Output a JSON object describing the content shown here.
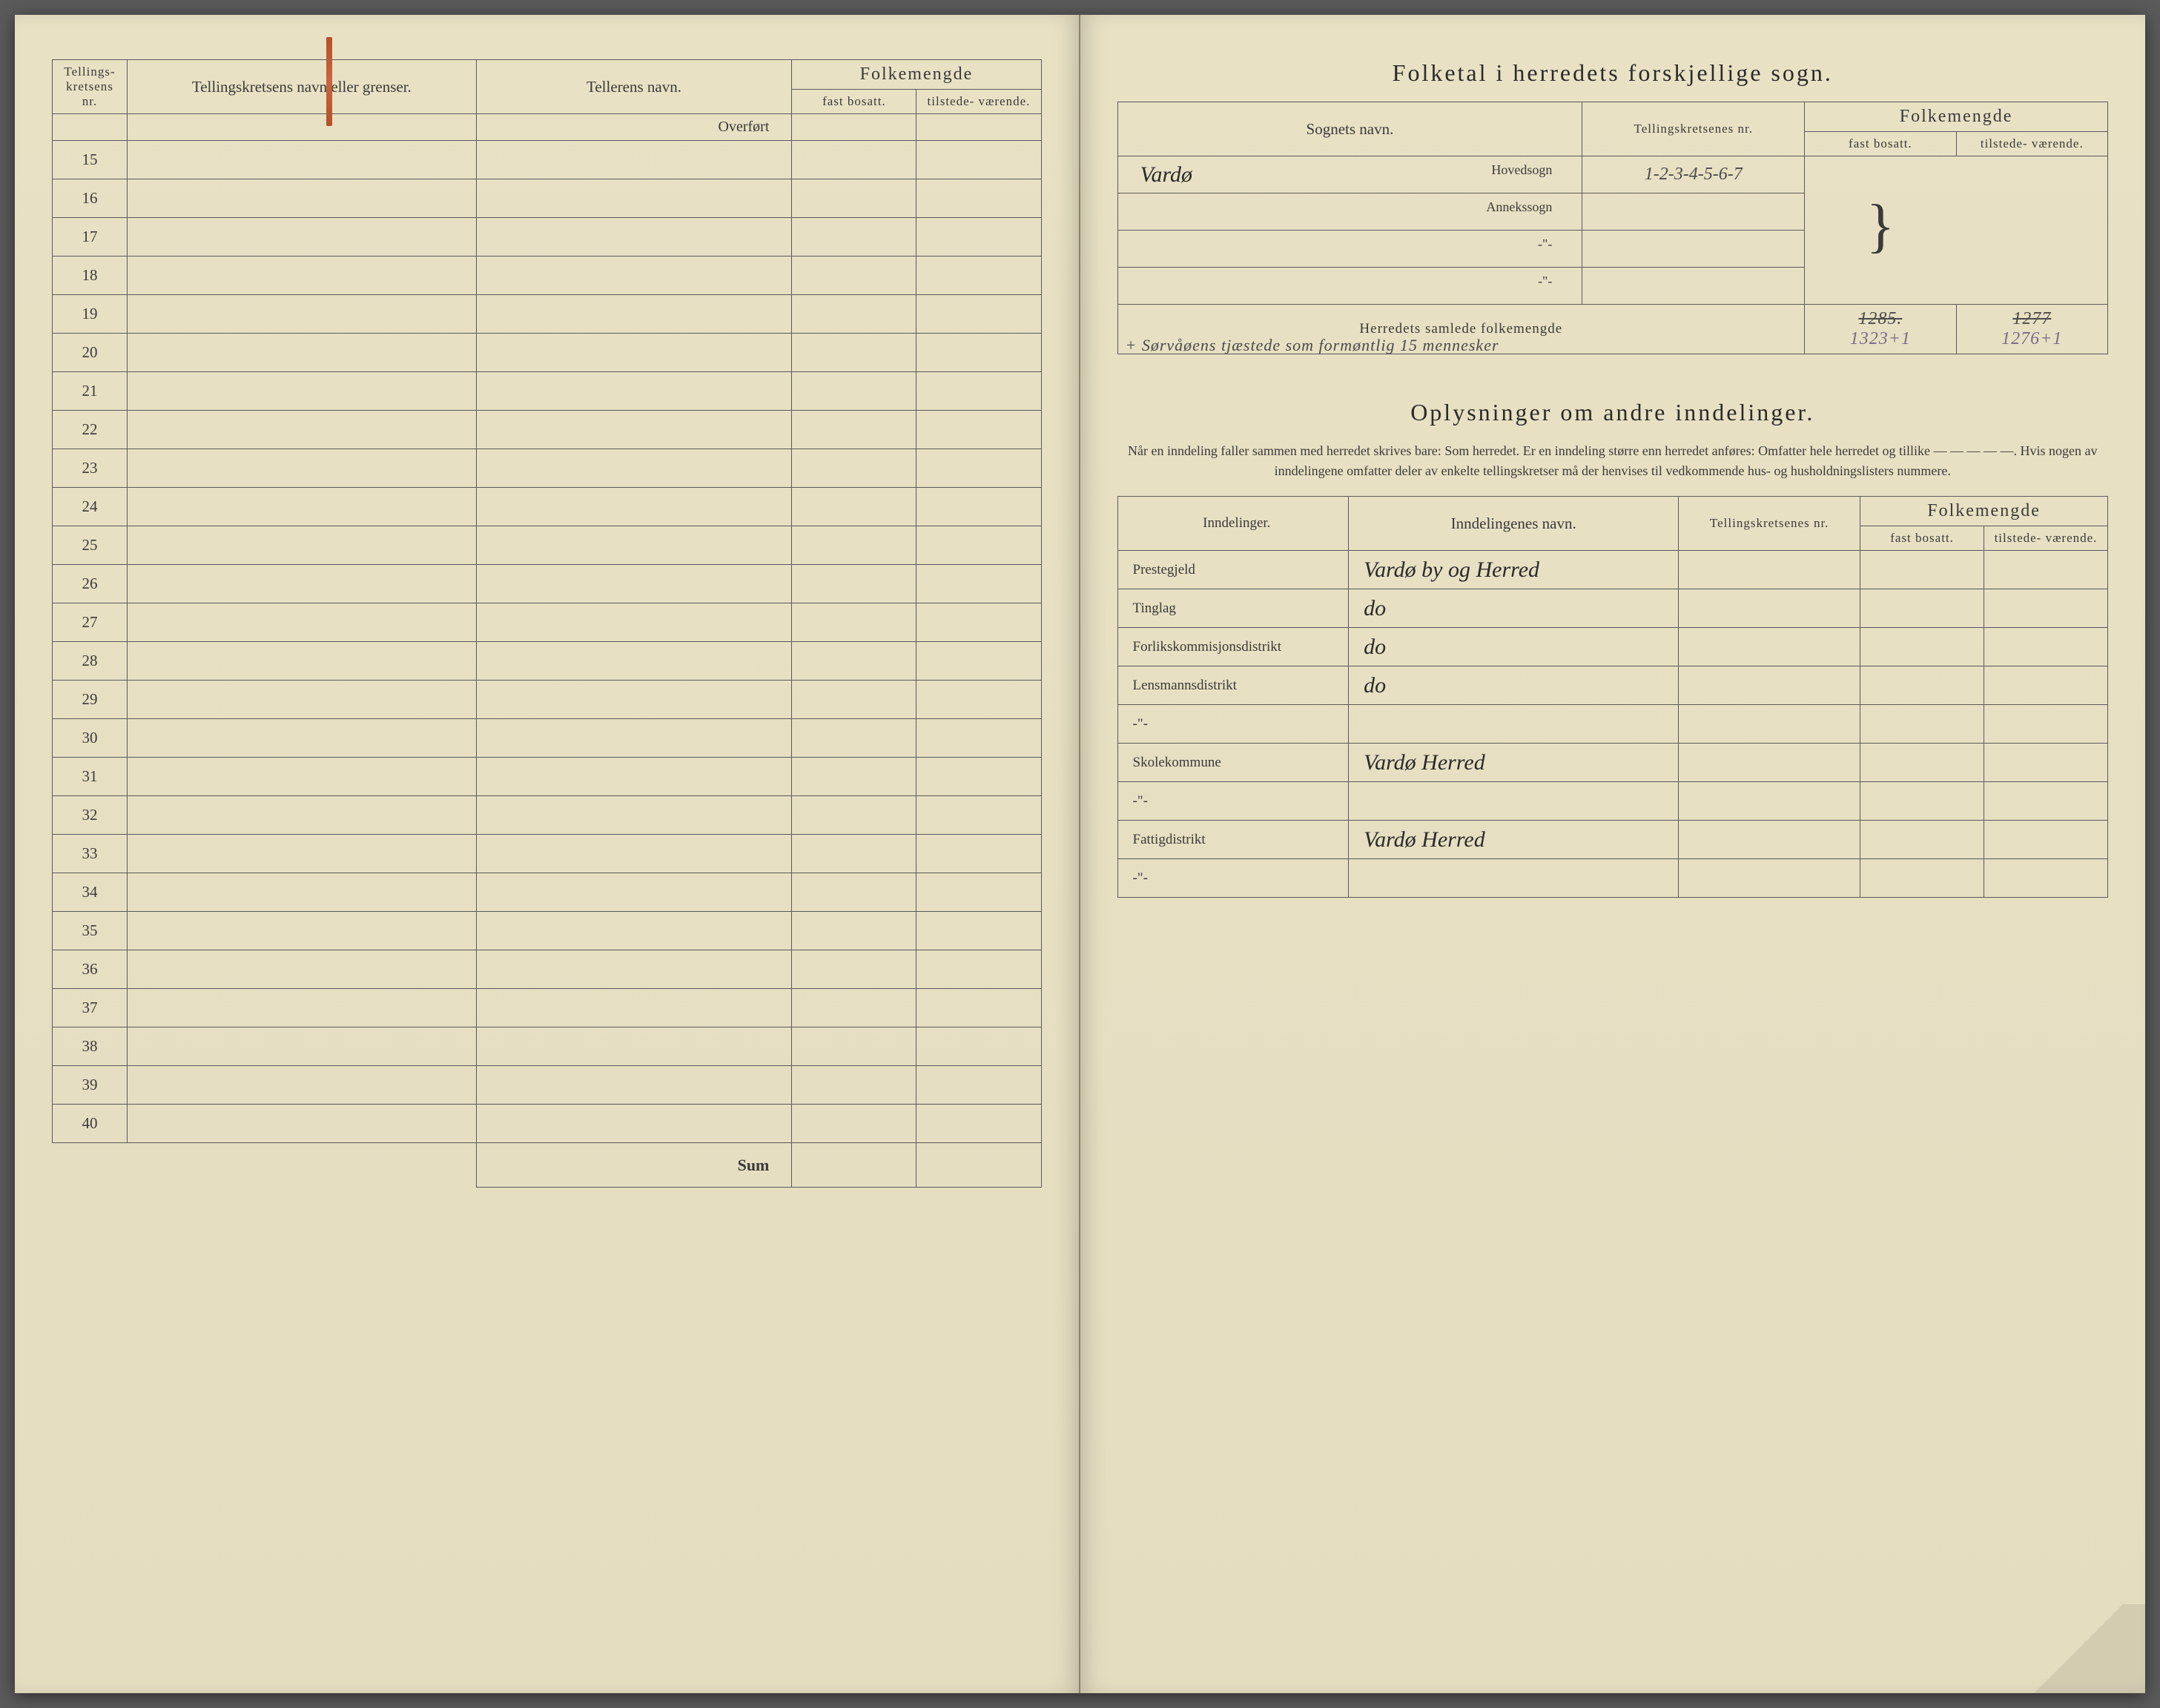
{
  "left_page": {
    "headers": {
      "nr": "Tellings-\nkretsens\nnr.",
      "krets_navn": "Tellingskretsens navn eller grenser.",
      "teller_navn": "Tellerens navn.",
      "folkemengde": "Folkemengde",
      "fast": "fast\nbosatt.",
      "tilstede": "tilstede-\nværende."
    },
    "overfort": "Overført",
    "sum": "Sum",
    "rows": [
      "15",
      "16",
      "17",
      "18",
      "19",
      "20",
      "21",
      "22",
      "23",
      "24",
      "25",
      "26",
      "27",
      "28",
      "29",
      "30",
      "31",
      "32",
      "33",
      "34",
      "35",
      "36",
      "37",
      "38",
      "39",
      "40"
    ]
  },
  "right_page": {
    "title1": "Folketal i herredets forskjellige sogn.",
    "headers": {
      "sognet": "Sognets navn.",
      "kretsene": "Tellingskretsenes\nnr.",
      "folkemengde": "Folkemengde",
      "fast": "fast\nbosatt.",
      "tilstede": "tilstede-\nværende."
    },
    "sogn_rows": [
      {
        "label": "Hovedsogn",
        "name": "Vardø",
        "kretser": "1-2-3-4-5-6-7"
      },
      {
        "label": "Annekssogn",
        "name": "",
        "kretser": ""
      },
      {
        "label": "-\"-",
        "name": "",
        "kretser": ""
      },
      {
        "label": "-\"-",
        "name": "",
        "kretser": ""
      }
    ],
    "samlede_label": "Herredets samlede folkemengde",
    "samlede_note": "+ Sørvåøens tjæstede som formøntlig 15 mennesker",
    "samlede_fast_strike": "1285.",
    "samlede_tilstede_strike": "1277",
    "samlede_fast": "1323+1",
    "samlede_tilstede": "1276+1",
    "title2": "Oplysninger om andre inndelinger.",
    "subtitle2": "Når en inndeling faller sammen med herredet skrives bare: Som herredet. Er en inndeling større enn herredet anføres: Omfatter hele herredet og tillike — — — — —. Hvis nogen av inndelingene omfatter deler av enkelte tellingskretser må der henvises til vedkommende hus- og husholdningslisters nummere.",
    "inndel_headers": {
      "inndelinger": "Inndelinger.",
      "navn": "Inndelingenes navn.",
      "kretsene": "Tellingskretsenes\nnr.",
      "folkemengde": "Folkemengde",
      "fast": "fast\nbosatt.",
      "tilstede": "tilstede-\nværende."
    },
    "inndel_rows": [
      {
        "label": "Prestegjeld",
        "name": "Vardø by og Herred"
      },
      {
        "label": "Tinglag",
        "name": "do"
      },
      {
        "label": "Forlikskommisjonsdistrikt",
        "name": "do"
      },
      {
        "label": "Lensmannsdistrikt",
        "name": "do"
      },
      {
        "label": "-\"-",
        "name": ""
      },
      {
        "label": "Skolekommune",
        "name": "Vardø Herred"
      },
      {
        "label": "-\"-",
        "name": ""
      },
      {
        "label": "Fattigdistrikt",
        "name": "Vardø Herred"
      },
      {
        "label": "-\"-",
        "name": ""
      }
    ]
  }
}
